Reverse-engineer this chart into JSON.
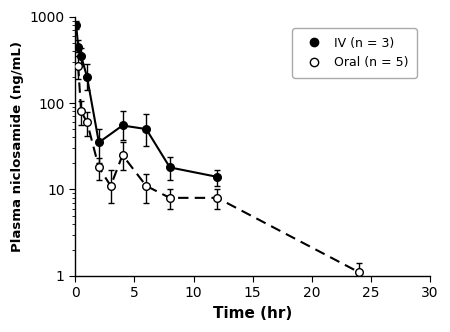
{
  "iv_x": [
    0.083,
    0.25,
    0.5,
    1,
    2,
    4,
    6,
    8,
    12
  ],
  "iv_y": [
    800,
    450,
    350,
    200,
    35,
    55,
    50,
    18,
    14
  ],
  "iv_yerr_lo": [
    80,
    60,
    70,
    60,
    15,
    18,
    18,
    5,
    3
  ],
  "iv_yerr_hi": [
    100,
    80,
    80,
    80,
    15,
    25,
    25,
    6,
    3
  ],
  "oral_x": [
    0.25,
    0.5,
    1,
    2,
    3,
    4,
    6,
    8,
    12,
    24
  ],
  "oral_y": [
    270,
    80,
    60,
    18,
    11,
    25,
    11,
    8,
    8,
    1.1
  ],
  "oral_yerr_lo": [
    80,
    25,
    18,
    5,
    4,
    8,
    4,
    2,
    2,
    0.3
  ],
  "oral_yerr_hi": [
    80,
    25,
    18,
    5,
    6,
    10,
    4,
    2,
    2,
    0.3
  ],
  "xlabel": "Time (hr)",
  "ylabel": "Plasma niclosamide (ng/mL)",
  "iv_label": "IV (n = 3)",
  "oral_label": "Oral (n = 5)",
  "xlim": [
    0,
    30
  ],
  "ylim": [
    1,
    1000
  ],
  "xticks": [
    0,
    5,
    10,
    15,
    20,
    25,
    30
  ],
  "background_color": "#ffffff"
}
